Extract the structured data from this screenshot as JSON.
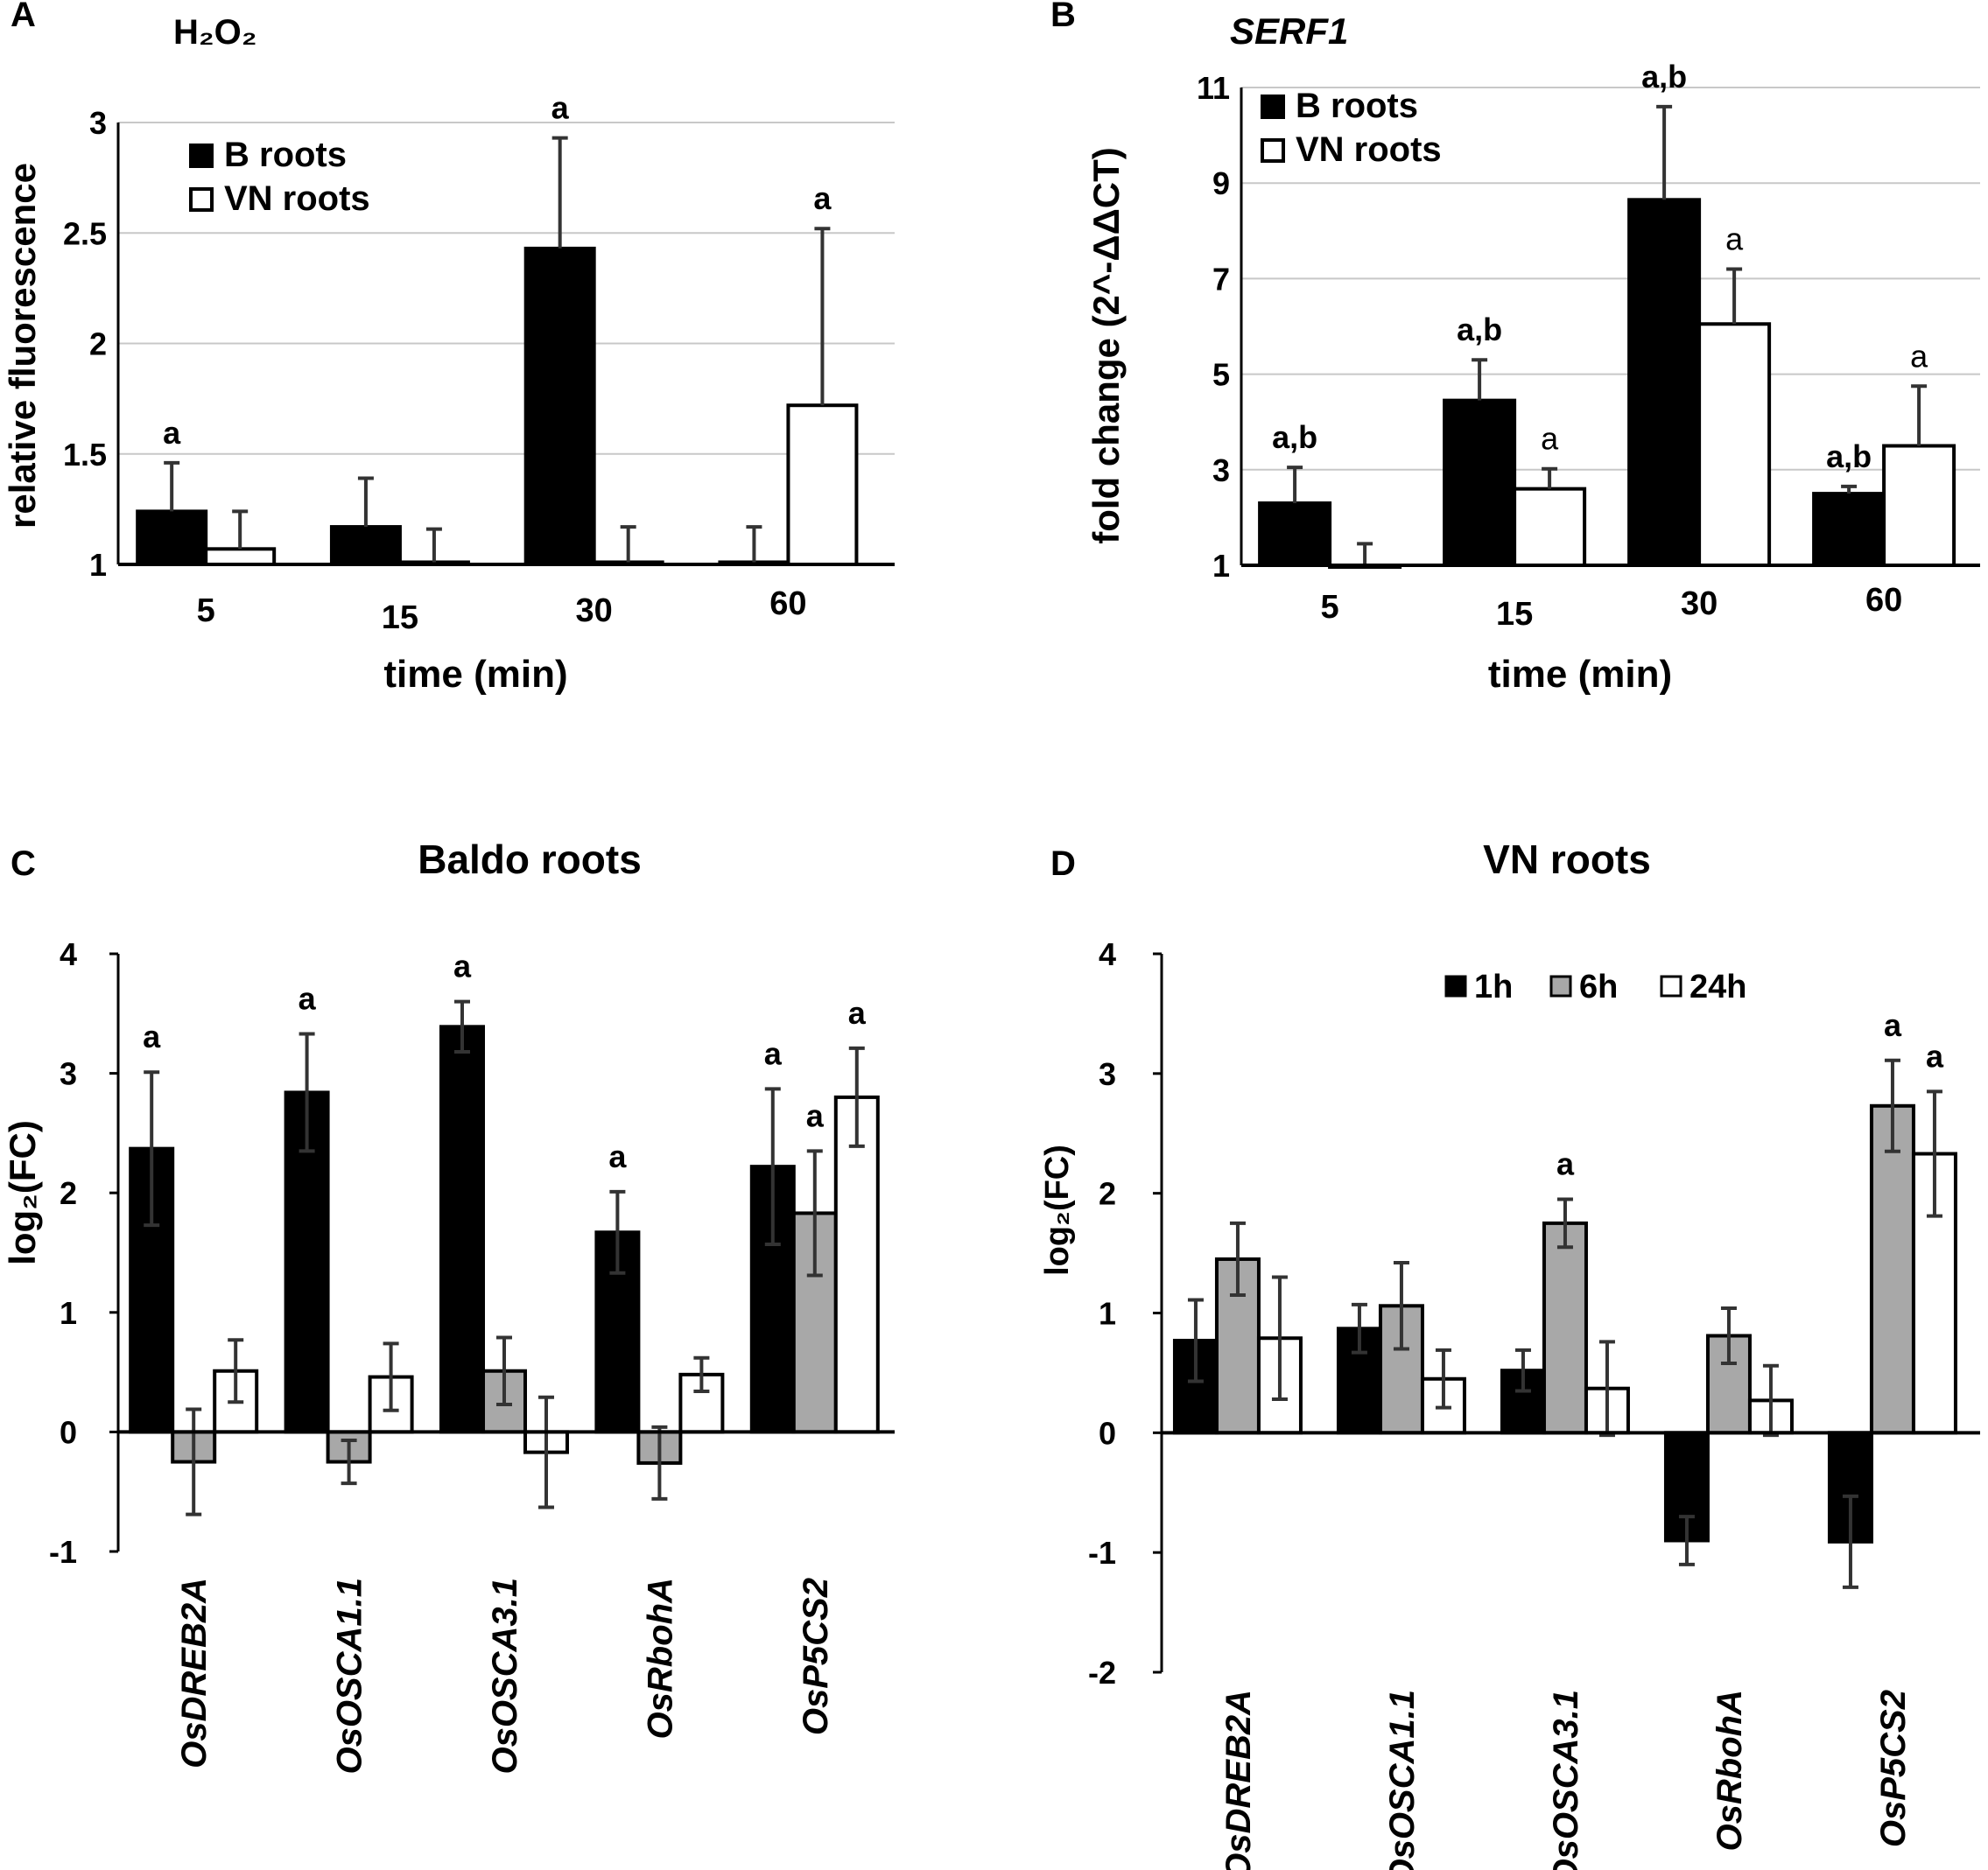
{
  "colors": {
    "black": "#000000",
    "gray": "#a8a8a8",
    "white": "#ffffff",
    "grid": "#c8c8c8"
  },
  "chart_data": [
    {
      "panel": "A",
      "type": "bar",
      "title": "H₂O₂",
      "xlabel": "time (min)",
      "ylabel": "relative fluorescence",
      "categories": [
        "5",
        "15",
        "30",
        "60"
      ],
      "ylim": [
        1,
        3
      ],
      "yticks": [
        "1",
        "1.5",
        "2",
        "2.5",
        "3"
      ],
      "grid": true,
      "legend_position": "top-left",
      "series": [
        {
          "name": "B roots",
          "fill": "black",
          "values": [
            1.24,
            1.17,
            2.43,
            1.01
          ],
          "errors": [
            0.22,
            0.22,
            0.5,
            0.16
          ],
          "labels": [
            "a",
            "",
            "a",
            ""
          ]
        },
        {
          "name": "VN roots",
          "fill": "white",
          "values": [
            1.07,
            1.01,
            1.01,
            1.72
          ],
          "errors": [
            0.17,
            0.15,
            0.16,
            0.8
          ],
          "labels": [
            "",
            "",
            "",
            "a"
          ]
        }
      ]
    },
    {
      "panel": "B",
      "type": "bar",
      "title": "SERF1",
      "xlabel": "time (min)",
      "ylabel": "fold change (2^-ΔΔCT)",
      "categories": [
        "5",
        "15",
        "30",
        "60"
      ],
      "ylim": [
        1,
        11
      ],
      "yticks": [
        "1",
        "3",
        "5",
        "7",
        "9",
        "11"
      ],
      "grid": true,
      "legend_position": "top-left",
      "series": [
        {
          "name": "B roots",
          "fill": "black",
          "values": [
            2.3,
            4.45,
            8.65,
            2.5
          ],
          "errors": [
            0.75,
            0.85,
            1.95,
            0.15
          ],
          "labels": [
            "a,b",
            "a,b",
            "a,b",
            "a,b"
          ]
        },
        {
          "name": "VN roots",
          "fill": "white",
          "values": [
            1.0,
            2.6,
            6.05,
            3.5
          ],
          "errors": [
            0.45,
            0.42,
            1.15,
            1.25
          ],
          "labels": [
            "",
            "a",
            "a",
            "a"
          ]
        }
      ]
    },
    {
      "panel": "C",
      "type": "bar",
      "title": "Baldo roots",
      "xlabel": "",
      "ylabel": "log₂(FC)",
      "categories": [
        "OsDREB2A",
        "OsOSCA1.1",
        "OsOSCA3.1",
        "OsRbohA",
        "OsP5CS2"
      ],
      "ylim": [
        -1,
        4
      ],
      "yticks": [
        "-1",
        "0",
        "1",
        "2",
        "3",
        "4"
      ],
      "grid": false,
      "series": [
        {
          "name": "1h",
          "fill": "black",
          "values": [
            2.37,
            2.84,
            3.39,
            1.67,
            2.22
          ],
          "errors": [
            0.64,
            0.49,
            0.21,
            0.34,
            0.65
          ],
          "labels": [
            "a",
            "a",
            "a",
            "a",
            "a"
          ]
        },
        {
          "name": "6h",
          "fill": "gray",
          "values": [
            -0.25,
            -0.25,
            0.51,
            -0.26,
            1.83
          ],
          "errors": [
            0.44,
            0.18,
            0.28,
            0.3,
            0.52
          ],
          "labels": [
            "",
            "",
            "",
            "",
            "a"
          ]
        },
        {
          "name": "24h",
          "fill": "white",
          "values": [
            0.51,
            0.46,
            -0.17,
            0.48,
            2.8
          ],
          "errors": [
            0.26,
            0.28,
            0.46,
            0.14,
            0.41
          ],
          "labels": [
            "",
            "",
            "",
            "",
            "a"
          ]
        }
      ]
    },
    {
      "panel": "D",
      "type": "bar",
      "title": "VN roots",
      "xlabel": "",
      "ylabel": "log₂(FC)",
      "categories": [
        "OsDREB2A",
        "OsOSCA1.1",
        "OsOSCA3.1",
        "OsRbohA",
        "OsP5CS2"
      ],
      "ylim": [
        -2,
        4
      ],
      "yticks": [
        "-2",
        "-1",
        "0",
        "1",
        "2",
        "3",
        "4"
      ],
      "grid": false,
      "legend_position": "top-right",
      "series": [
        {
          "name": "1h",
          "fill": "black",
          "values": [
            0.77,
            0.87,
            0.52,
            -0.9,
            -0.91
          ],
          "errors": [
            0.34,
            0.2,
            0.17,
            0.2,
            0.38
          ],
          "labels": [
            "",
            "",
            "",
            "",
            ""
          ]
        },
        {
          "name": "6h",
          "fill": "gray",
          "values": [
            1.45,
            1.06,
            1.75,
            0.81,
            2.73
          ],
          "errors": [
            0.3,
            0.36,
            0.2,
            0.23,
            0.38
          ],
          "labels": [
            "",
            "",
            "a",
            "",
            "a"
          ]
        },
        {
          "name": "24h",
          "fill": "white",
          "values": [
            0.79,
            0.45,
            0.37,
            0.27,
            2.33
          ],
          "errors": [
            0.51,
            0.24,
            0.39,
            0.29,
            0.52
          ],
          "labels": [
            "",
            "",
            "",
            "",
            "a"
          ]
        }
      ]
    }
  ]
}
